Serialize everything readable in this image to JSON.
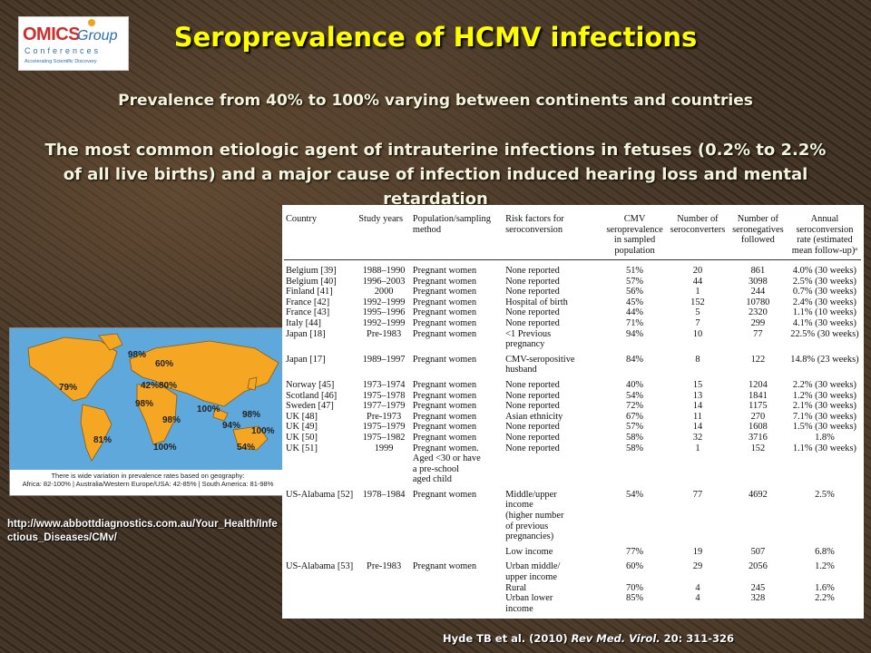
{
  "logo": {
    "brand1": "OMICS",
    "brand2": "Group",
    "line2": "Conferences",
    "tagline": "Accelerating Scientific Discovery"
  },
  "title": "Seroprevalence of HCMV infections",
  "subtitle1": "Prevalence from 40% to 100% varying between continents and countries",
  "subtitle2": "The most common etiologic agent of intrauterine infections in fetuses (0.2% to 2.2% of all live births) and a major cause of infection induced hearing loss and mental retardation",
  "map": {
    "labels": [
      "98%",
      "60%",
      "79%",
      "42%",
      "80%",
      "98%",
      "100%",
      "98%",
      "98%",
      "94%",
      "100%",
      "81%",
      "100%",
      "54%"
    ],
    "caption_line1": "There is wide variation in prevalence rates based on geography:",
    "caption_line2": "Africa: 82-100% | Australia/Western Europe/USA: 42-85% | South America: 81-98%"
  },
  "source_url": "http://www.abbottdiagnostics.com.au/Your_Health/Infectious_Diseases/CMv/",
  "table": {
    "headers": [
      "Country",
      "Study years",
      "Population/sampling method",
      "Risk factors for seroconversion",
      "CMV seroprevalence in sampled population",
      "Number of seroconverters",
      "Number of seronegatives followed",
      "Annual seroconversion rate (estimated mean follow-up)ᵃ"
    ],
    "rows": [
      [
        "Belgium [39]",
        "1988–1990",
        "Pregnant women",
        "None reported",
        "51%",
        "20",
        "861",
        "4.0% (30 weeks)"
      ],
      [
        "Belgium [40]",
        "1996–2003",
        "Pregnant women",
        "None reported",
        "57%",
        "44",
        "3098",
        "2.5% (30 weeks)"
      ],
      [
        "Finland [41]",
        "2000",
        "Pregnant women",
        "None reported",
        "56%",
        "1",
        "244",
        "0.7% (30 weeks)"
      ],
      [
        "France [42]",
        "1992–1999",
        "Pregnant women",
        "Hospital of birth",
        "45%",
        "152",
        "10780",
        "2.4% (30 weeks)"
      ],
      [
        "France [43]",
        "1995–1996",
        "Pregnant women",
        "None reported",
        "44%",
        "5",
        "2320",
        "1.1% (10 weeks)"
      ],
      [
        "Italy [44]",
        "1992–1999",
        "Pregnant women",
        "None reported",
        "71%",
        "7",
        "299",
        "4.1% (30 weeks)"
      ],
      [
        "Japan [18]",
        "Pre-1983",
        "Pregnant women",
        "<1 Previous\npregnancy",
        "94%",
        "10",
        "77",
        "22.5% (30 weeks)"
      ],
      [
        "Japan [17]",
        "1989–1997",
        "Pregnant women",
        "CMV-seropositive\nhusband",
        "84%",
        "8",
        "122",
        "14.8% (23 weeks)"
      ],
      [
        "Norway [45]",
        "1973–1974",
        "Pregnant women",
        "None reported",
        "40%",
        "15",
        "1204",
        "2.2% (30 weeks)"
      ],
      [
        "Scotland [46]",
        "1975–1978",
        "Pregnant women",
        "None reported",
        "54%",
        "13",
        "1841",
        "1.2% (30 weeks)"
      ],
      [
        "Sweden [47]",
        "1977–1979",
        "Pregnant women",
        "None reported",
        "72%",
        "14",
        "1175",
        "2.1% (30 weeks)"
      ],
      [
        "UK [48]",
        "Pre-1973",
        "Pregnant women",
        "Asian ethnicity",
        "67%",
        "11",
        "270",
        "7.1% (30 weeks)"
      ],
      [
        "UK [49]",
        "1975–1979",
        "Pregnant women",
        "None reported",
        "57%",
        "14",
        "1608",
        "1.5% (30 weeks)"
      ],
      [
        "UK [50]",
        "1975–1982",
        "Pregnant women",
        "None reported",
        "58%",
        "32",
        "3716",
        "1.8%"
      ],
      [
        "UK [51]",
        "1999",
        "Pregnant women.\nAged <30 or have\na pre-school\naged child",
        "None reported",
        "58%",
        "1",
        "152",
        "1.1% (30 weeks)"
      ],
      [
        "US-Alabama [52]",
        "1978–1984",
        "Pregnant women",
        "Middle/upper\nincome\n(higher number\nof previous\npregnancies)",
        "54%",
        "77",
        "4692",
        "2.5%"
      ],
      [
        "",
        "",
        "",
        "Low income",
        "77%",
        "19",
        "507",
        "6.8%"
      ],
      [
        "US-Alabama [53]",
        "Pre-1983",
        "Pregnant women",
        "Urban middle/\nupper income",
        "60%",
        "29",
        "2056",
        "1.2%"
      ],
      [
        "",
        "",
        "",
        "Rural",
        "70%",
        "4",
        "245",
        "1.6%"
      ],
      [
        "",
        "",
        "",
        "Urban lower\nincome",
        "85%",
        "4",
        "328",
        "2.2%"
      ]
    ]
  },
  "citation": {
    "authors": "Hyde TB et al. (2010) ",
    "journal": "Rev Med. Virol.",
    "rest": " 20: 311-326"
  }
}
